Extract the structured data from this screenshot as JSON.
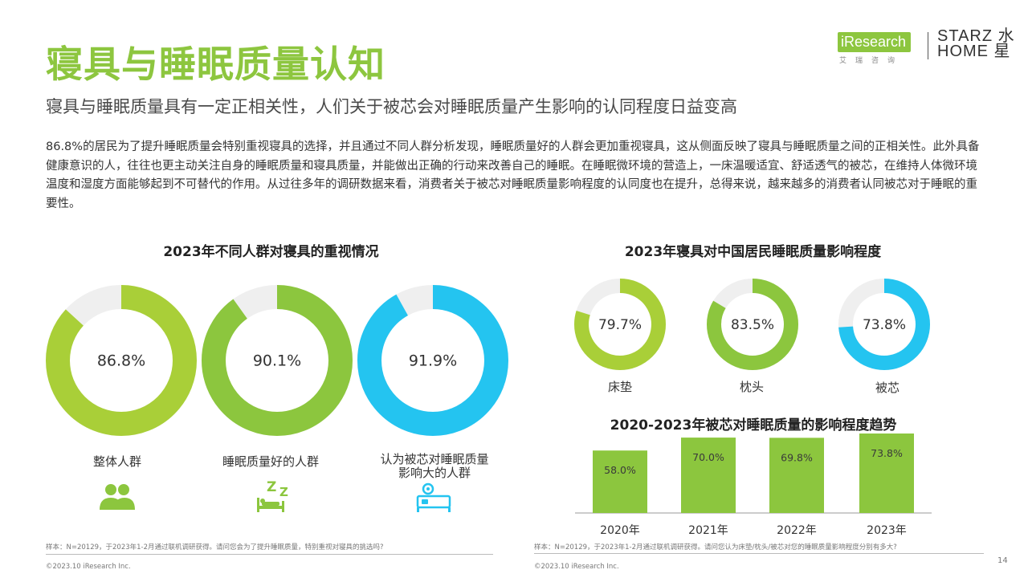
{
  "page": {
    "title": "寝具与睡眠质量认知",
    "subtitle": "寝具与睡眠质量具有一定正相关性，人们关于被芯会对睡眠质量产生影响的认同程度日益变高",
    "body": "86.8%的居民为了提升睡眠质量会特别重视寝具的选择，并且通过不同人群分析发现，睡眠质量好的人群会更加重视寝具，这从侧面反映了寝具与睡眠质量之间的正相关性。此外具备健康意识的人，往往也更主动关注自身的睡眠质量和寝具质量，并能做出正确的行动来改善自己的睡眠。在睡眠微环境的营造上，一床温暖适宜、舒适透气的被芯，在维持人体微环境温度和湿度方面能够起到不可替代的作用。从过往多年的调研数据来看，消费者关于被芯对睡眠质量影响程度的认同度也在提升，总得来说，越来越多的消费者认同被芯对于睡眠的重要性。",
    "page_number": "14"
  },
  "logos": {
    "iresearch": "iResearch",
    "iresearch_cn": "艾瑞咨询",
    "starz_line1": "STARZ 水",
    "starz_line2": "HOME 星"
  },
  "colors": {
    "green_light": "#a9cf38",
    "green": "#8cc63e",
    "blue": "#24c4f0",
    "track": "#efefef",
    "bar": "#8cc63e"
  },
  "chart_data": [
    {
      "type": "pie",
      "title": "2023年不同人群对寝具的重视情况",
      "categories": [
        "整体人群",
        "睡眠质量好的人群",
        "认为被芯对睡眠质量影响大的人群"
      ],
      "values": [
        86.8,
        90.1,
        91.9
      ],
      "value_labels": [
        "86.8%",
        "90.1%",
        "91.9%"
      ],
      "icons": [
        "people-icon",
        "sleep-zzz-icon",
        "bed-quilt-icon"
      ],
      "note": "样本：N=20129，于2023年1-2月通过联机调研获得。请问您会为了提升睡眠质量，特别重视对寝具的挑选吗?",
      "copyright": "©2023.10 iResearch Inc."
    },
    {
      "type": "pie",
      "title": "2023年寝具对中国居民睡眠质量影响程度",
      "categories": [
        "床垫",
        "枕头",
        "被芯"
      ],
      "values": [
        79.7,
        83.5,
        73.8
      ],
      "value_labels": [
        "79.7%",
        "83.5%",
        "73.8%"
      ]
    },
    {
      "type": "bar",
      "title": "2020-2023年被芯对睡眠质量的影响程度趋势",
      "categories": [
        "2020年",
        "2021年",
        "2022年",
        "2023年"
      ],
      "values": [
        58.0,
        70.0,
        69.8,
        73.8
      ],
      "value_labels": [
        "58.0%",
        "70.0%",
        "69.8%",
        "73.8%"
      ],
      "note": "样本：N=20129，于2023年1-2月通过联机调研获得。请问您认为床垫/枕头/被芯对您的睡眠质量影响程度分别有多大?",
      "copyright": "©2023.10 iResearch Inc."
    }
  ]
}
